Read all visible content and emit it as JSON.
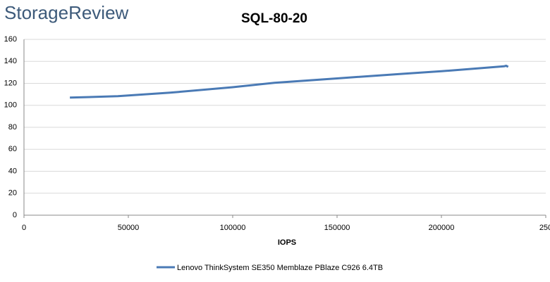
{
  "logo": "StorageReview",
  "chart_data": {
    "type": "line",
    "title": "SQL-80-20",
    "x_label": "IOPS",
    "series": [
      {
        "name": "Lenovo ThinkSystem SE350 Memblaze PBlaze C926 6.4TB",
        "color": "#4a7ab5",
        "x": [
          22000,
          45000,
          70000,
          100000,
          120000,
          150000,
          180000,
          200000,
          220000,
          230000,
          231000,
          232000
        ],
        "values": [
          107,
          108.3,
          111.5,
          116.5,
          120.5,
          124.5,
          128.5,
          131,
          134,
          135.5,
          136,
          135
        ]
      }
    ],
    "xlim": [
      0,
      250000
    ],
    "xticks": [
      0,
      50000,
      100000,
      150000,
      200000,
      {
        "value": 250000,
        "label": "250"
      }
    ],
    "ylim": [
      0,
      160
    ],
    "yticks": [
      0,
      20,
      40,
      60,
      80,
      100,
      120,
      140,
      160
    ],
    "grid": true,
    "legend": "bottom"
  }
}
